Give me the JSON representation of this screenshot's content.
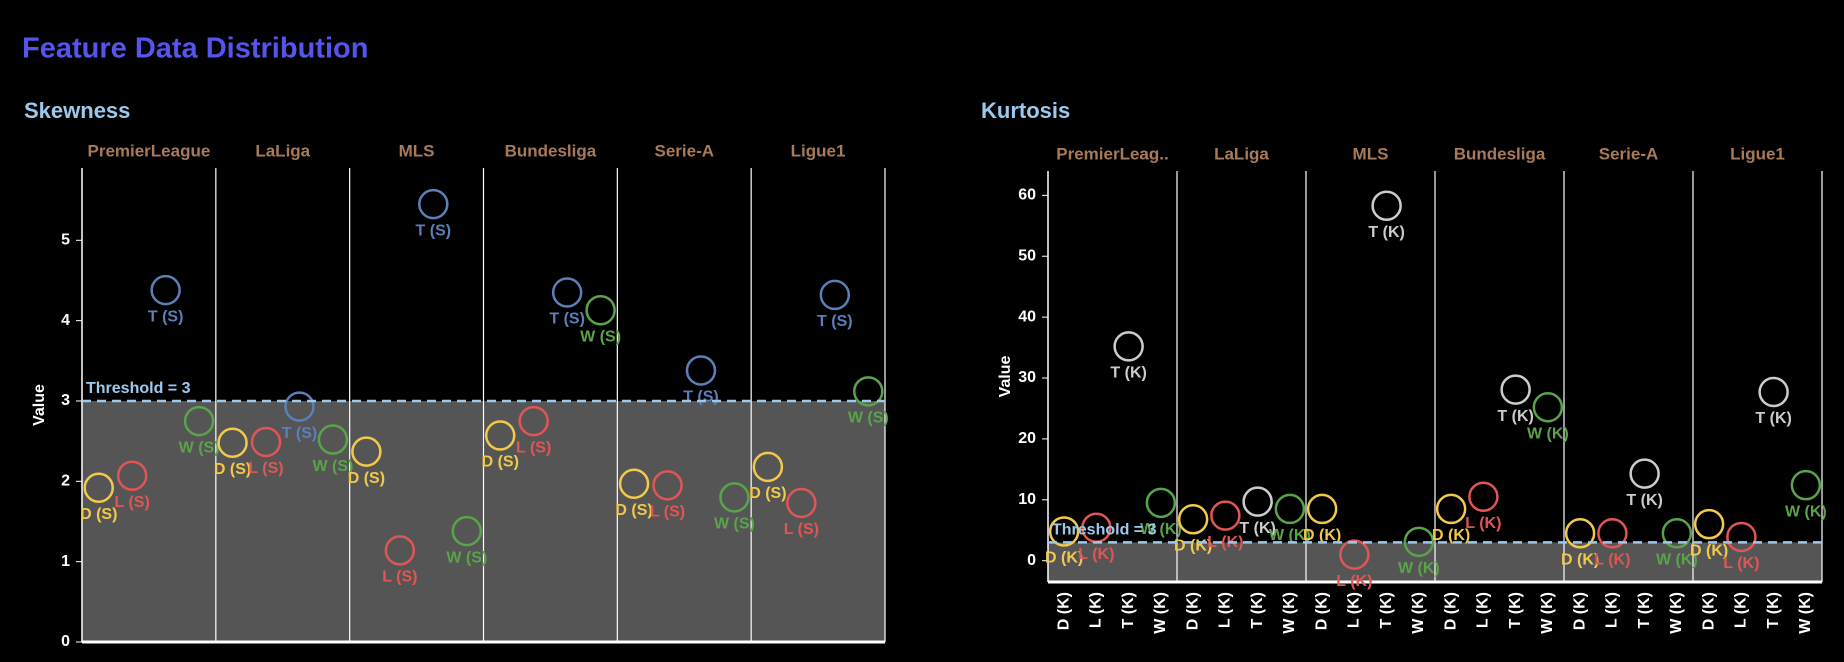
{
  "title": "Feature Data Distribution",
  "chart_data": [
    {
      "type": "dot",
      "title": "Skewness",
      "y_label": "Value",
      "facets": [
        "PremierLeague",
        "LaLiga",
        "MLS",
        "Bundesliga",
        "Serie-A",
        "Ligue1"
      ],
      "categories": [
        "D (S)",
        "L (S)",
        "T (S)",
        "W (S)"
      ],
      "colors": [
        "#f2c94c",
        "#e05555",
        "#5b7fb8",
        "#5aa34a"
      ],
      "values": [
        [
          1.92,
          2.07,
          4.38,
          2.75
        ],
        [
          2.48,
          2.49,
          2.93,
          2.52
        ],
        [
          2.37,
          1.14,
          5.45,
          1.38
        ],
        [
          2.57,
          2.75,
          4.35,
          4.13
        ],
        [
          1.97,
          1.95,
          3.38,
          1.8
        ],
        [
          2.18,
          1.73,
          4.32,
          3.12
        ]
      ],
      "ylim": [
        0,
        5.9
      ],
      "yticks": [
        0,
        1,
        2,
        3,
        4,
        5
      ],
      "threshold": {
        "value": 3,
        "label": "Threshold = 3"
      },
      "show_xticks": false
    },
    {
      "type": "dot",
      "title": "Kurtosis",
      "y_label": "Value",
      "facets": [
        "PremierLeag..",
        "LaLiga",
        "MLS",
        "Bundesliga",
        "Serie-A",
        "Ligue1"
      ],
      "categories": [
        "D (K)",
        "L (K)",
        "T (K)",
        "W (K)"
      ],
      "colors": [
        "#f2c94c",
        "#e05555",
        "#cccccc",
        "#5aa34a"
      ],
      "values": [
        [
          4.8,
          5.4,
          35.2,
          9.5
        ],
        [
          6.8,
          7.4,
          9.7,
          8.5
        ],
        [
          8.5,
          1.0,
          58.3,
          3.1
        ],
        [
          8.5,
          10.5,
          28.1,
          25.2
        ],
        [
          4.5,
          4.5,
          14.3,
          4.5
        ],
        [
          6.0,
          3.9,
          27.7,
          12.4
        ]
      ],
      "ylim": [
        -3.5,
        64
      ],
      "yticks": [
        0,
        10,
        20,
        30,
        40,
        50,
        60
      ],
      "threshold": {
        "value": 3,
        "label": "Threshold = 3"
      },
      "show_xticks": true
    }
  ]
}
